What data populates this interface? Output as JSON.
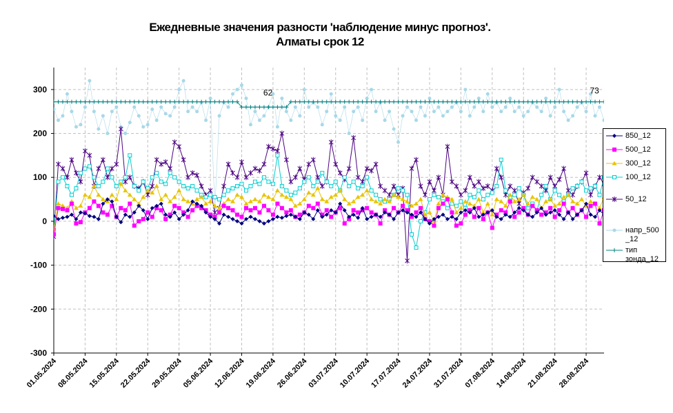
{
  "chart_data": {
    "type": "line",
    "title": "Ежедневные значения разности 'наблюдение минус прогноз'.",
    "subtitle": "Алматы     срок 12",
    "ylim": [
      -300,
      350
    ],
    "yticks": [
      -300,
      -200,
      -100,
      0,
      100,
      200,
      300
    ],
    "grid": true,
    "legend_position": "right",
    "x_start": "01.05.2024",
    "x_end": "31.08.2024",
    "xticks": [
      "01.05.2024",
      "08.05.2024",
      "15.05.2024",
      "22.05.2024",
      "29.05.2024",
      "05.06.2024",
      "12.06.2024",
      "19.06.2024",
      "26.06.2024",
      "03.07.2024",
      "10.07.2024",
      "17.07.2024",
      "24.07.2024",
      "31.07.2024",
      "07.08.2024",
      "14.08.2024",
      "21.08.2024",
      "28.08.2024"
    ],
    "annotations": [
      {
        "text": "62",
        "x": "19.06.2024",
        "y": 280
      },
      {
        "text": "73",
        "x": "31.08.2024",
        "y": 285
      }
    ],
    "series": [
      {
        "name": "850_12",
        "color": "#000080",
        "marker": "diamond",
        "values": [
          12,
          5,
          8,
          10,
          15,
          5,
          20,
          18,
          12,
          10,
          5,
          40,
          50,
          45,
          10,
          -2,
          15,
          10,
          20,
          35,
          25,
          5,
          30,
          35,
          40,
          15,
          10,
          20,
          5,
          15,
          25,
          45,
          40,
          35,
          20,
          10,
          5,
          -5,
          15,
          10,
          5,
          0,
          -5,
          5,
          10,
          5,
          0,
          -5,
          0,
          5,
          10,
          8,
          12,
          15,
          10,
          5,
          20,
          15,
          5,
          25,
          10,
          15,
          25,
          20,
          40,
          25,
          10,
          15,
          8,
          30,
          5,
          10,
          15,
          10,
          20,
          15,
          5,
          20,
          25,
          20,
          15,
          10,
          20,
          5,
          -5,
          5,
          10,
          15,
          5,
          10,
          5,
          20,
          25,
          20,
          30,
          10,
          15,
          20,
          25,
          10,
          5,
          15,
          10,
          20,
          30,
          25,
          15,
          10,
          20,
          30,
          15,
          20,
          25,
          15,
          5,
          20,
          5,
          15,
          25,
          40,
          15,
          10,
          25,
          15,
          20,
          15,
          10,
          30,
          15
        ]
      },
      {
        "name": "500_12",
        "color": "#ff00ff",
        "marker": "square",
        "values": [
          -30,
          30,
          28,
          25,
          40,
          -5,
          -2,
          20,
          30,
          45,
          35,
          20,
          15,
          35,
          10,
          30,
          25,
          40,
          -10,
          0,
          5,
          20,
          10,
          30,
          25,
          5,
          15,
          35,
          30,
          20,
          10,
          25,
          35,
          30,
          25,
          15,
          10,
          20,
          35,
          30,
          25,
          15,
          10,
          30,
          25,
          30,
          20,
          35,
          25,
          15,
          40,
          30,
          20,
          25,
          10,
          15,
          20,
          35,
          30,
          40,
          15,
          25,
          10,
          20,
          30,
          -5,
          5,
          25,
          20,
          25,
          30,
          20,
          15,
          -5,
          25,
          15,
          30,
          20,
          35,
          25,
          10,
          20,
          30,
          5,
          0,
          -10,
          30,
          40,
          50,
          20,
          -10,
          -5,
          15,
          25,
          10,
          30,
          5,
          20,
          -15,
          15,
          25,
          20,
          45,
          10,
          20,
          30,
          15,
          35,
          25,
          15,
          20,
          30,
          10,
          25,
          40,
          20,
          30,
          15,
          25,
          10,
          35,
          40,
          -5,
          25,
          30,
          15,
          20,
          50,
          15,
          30
        ]
      },
      {
        "name": "300_12",
        "color": "#e8c400",
        "marker": "triangle",
        "values": [
          -20,
          40,
          35,
          30,
          45,
          30,
          35,
          60,
          55,
          80,
          60,
          50,
          45,
          60,
          50,
          85,
          70,
          60,
          50,
          40,
          55,
          70,
          65,
          80,
          50,
          60,
          45,
          55,
          70,
          50,
          45,
          40,
          50,
          55,
          40,
          45,
          35,
          30,
          40,
          50,
          45,
          60,
          55,
          40,
          45,
          50,
          45,
          60,
          55,
          50,
          70,
          60,
          55,
          50,
          35,
          40,
          50,
          65,
          60,
          75,
          50,
          45,
          55,
          60,
          70,
          50,
          40,
          45,
          55,
          60,
          70,
          50,
          45,
          40,
          50,
          45,
          60,
          55,
          50,
          45,
          35,
          40,
          50,
          15,
          20,
          0,
          40,
          60,
          55,
          50,
          20,
          30,
          45,
          40,
          35,
          50,
          20,
          40,
          15,
          50,
          45,
          35,
          60,
          45,
          50,
          60,
          40,
          55,
          50,
          30,
          45,
          50,
          35,
          40,
          55,
          60,
          45,
          40,
          50,
          35,
          45,
          40,
          30,
          55,
          50,
          45,
          60,
          40,
          50
        ]
      },
      {
        "name": "100_12",
        "color": "#00ced1",
        "marker": "square-open",
        "values": [
          -20,
          90,
          100,
          80,
          60,
          75,
          110,
          120,
          125,
          100,
          80,
          90,
          120,
          100,
          80,
          90,
          100,
          150,
          80,
          70,
          90,
          75,
          100,
          110,
          90,
          85,
          110,
          100,
          90,
          80,
          75,
          80,
          70,
          60,
          55,
          60,
          55,
          50,
          60,
          70,
          75,
          80,
          85,
          70,
          80,
          90,
          85,
          100,
          90,
          85,
          150,
          80,
          70,
          60,
          65,
          75,
          90,
          100,
          80,
          90,
          110,
          90,
          80,
          90,
          70,
          100,
          80,
          90,
          75,
          80,
          100,
          70,
          60,
          50,
          45,
          50,
          60,
          75,
          70,
          60,
          -30,
          -60,
          0,
          20,
          50,
          60,
          55,
          45,
          30,
          40,
          35,
          45,
          30,
          60,
          55,
          70,
          50,
          60,
          65,
          80,
          140,
          70,
          55,
          60,
          75,
          60,
          30,
          40,
          25,
          60,
          80,
          50,
          70,
          60,
          45,
          60,
          75,
          80,
          90,
          70,
          75,
          80,
          60,
          100,
          70,
          85,
          75,
          55,
          60,
          70,
          50,
          65
        ]
      },
      {
        "name": "50_12",
        "color": "#4b0082",
        "marker": "star",
        "values": [
          -35,
          130,
          120,
          100,
          140,
          110,
          90,
          160,
          150,
          80,
          120,
          140,
          100,
          120,
          130,
          210,
          90,
          100,
          80,
          75,
          90,
          60,
          80,
          140,
          130,
          135,
          120,
          180,
          170,
          140,
          100,
          110,
          105,
          80,
          60,
          70,
          20,
          30,
          80,
          130,
          110,
          100,
          135,
          100,
          110,
          120,
          115,
          130,
          170,
          165,
          160,
          200,
          140,
          90,
          100,
          120,
          95,
          130,
          140,
          100,
          80,
          90,
          180,
          130,
          110,
          95,
          120,
          190,
          100,
          90,
          120,
          115,
          130,
          80,
          70,
          60,
          80,
          60,
          75,
          -90,
          120,
          140,
          80,
          60,
          90,
          70,
          100,
          60,
          170,
          90,
          80,
          60,
          70,
          100,
          80,
          90,
          75,
          80,
          70,
          120,
          100,
          60,
          80,
          70,
          40,
          65,
          75,
          100,
          90,
          80,
          70,
          100,
          80,
          95,
          120,
          70,
          60,
          80,
          90,
          110,
          60,
          80,
          100,
          85,
          70,
          95,
          100,
          60,
          80,
          105,
          70,
          80
        ]
      },
      {
        "name": "напр_500_12",
        "color": "#a8d8e8",
        "marker": "circle",
        "values": [
          255,
          230,
          240,
          290,
          250,
          215,
          220,
          260,
          320,
          250,
          210,
          240,
          200,
          250,
          260,
          215,
          200,
          225,
          260,
          240,
          215,
          220,
          255,
          230,
          260,
          245,
          240,
          260,
          300,
          320,
          250,
          260,
          250,
          270,
          230,
          280,
          30,
          240,
          270,
          260,
          290,
          300,
          310,
          280,
          220,
          250,
          230,
          240,
          260,
          290,
          215,
          280,
          250,
          230,
          260,
          240,
          300,
          260,
          270,
          260,
          220,
          250,
          290,
          240,
          230,
          260,
          200,
          250,
          260,
          230,
          280,
          300,
          250,
          270,
          230,
          250,
          210,
          180,
          240,
          260,
          250,
          230,
          260,
          240,
          280,
          250,
          260,
          240,
          250,
          260,
          270,
          250,
          300,
          240,
          260,
          280,
          250,
          290,
          260,
          270,
          250,
          260,
          280,
          250,
          260,
          240,
          250,
          270,
          260,
          250,
          280,
          240,
          260,
          300,
          250,
          230,
          240,
          260,
          270,
          250,
          290,
          240,
          260,
          230,
          215,
          270,
          250,
          240,
          260,
          285,
          240,
          250
        ]
      },
      {
        "name": "тип зонда_12",
        "color": "#008080",
        "marker": "plus",
        "values": [
          272,
          272,
          272,
          272,
          272,
          272,
          272,
          272,
          272,
          272,
          272,
          272,
          272,
          272,
          272,
          272,
          272,
          272,
          272,
          272,
          272,
          272,
          272,
          272,
          272,
          272,
          272,
          272,
          272,
          272,
          272,
          272,
          272,
          272,
          272,
          272,
          272,
          272,
          272,
          272,
          272,
          272,
          260,
          260,
          260,
          260,
          260,
          260,
          260,
          260,
          260,
          260,
          260,
          272,
          272,
          272,
          272,
          272,
          272,
          272,
          272,
          272,
          272,
          272,
          272,
          272,
          272,
          272,
          272,
          272,
          272,
          272,
          272,
          272,
          272,
          272,
          272,
          272,
          272,
          272,
          272,
          272,
          272,
          272,
          272,
          272,
          272,
          272,
          272,
          272,
          272,
          272,
          272,
          272,
          272,
          272,
          272,
          272,
          272,
          272,
          272,
          272,
          272,
          272,
          272,
          272,
          272,
          272,
          272,
          272,
          272,
          272,
          272,
          272,
          272,
          272,
          272,
          272,
          272,
          272,
          272,
          272,
          272,
          272,
          272,
          272,
          272,
          272,
          272,
          272,
          272,
          272
        ]
      }
    ]
  }
}
